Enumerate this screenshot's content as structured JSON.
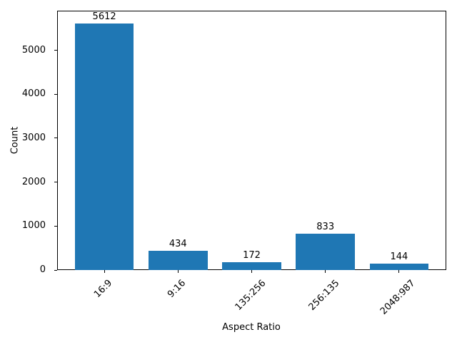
{
  "chart_data": {
    "type": "bar",
    "title": "",
    "xlabel": "Aspect Ratio",
    "ylabel": "Count",
    "categories": [
      "16:9",
      "9:16",
      "135:256",
      "256:135",
      "2048:987"
    ],
    "values": [
      5612,
      434,
      172,
      833,
      144
    ],
    "bar_color": "#1f77b4",
    "axis_color": "#000000",
    "background_color": "#ffffff",
    "ylim": [
      0,
      5900
    ],
    "yticks": [
      0,
      1000,
      2000,
      3000,
      4000,
      5000
    ],
    "x_tick_rotation_deg": 45,
    "grid": false,
    "legend": false,
    "value_labels_shown": true
  }
}
